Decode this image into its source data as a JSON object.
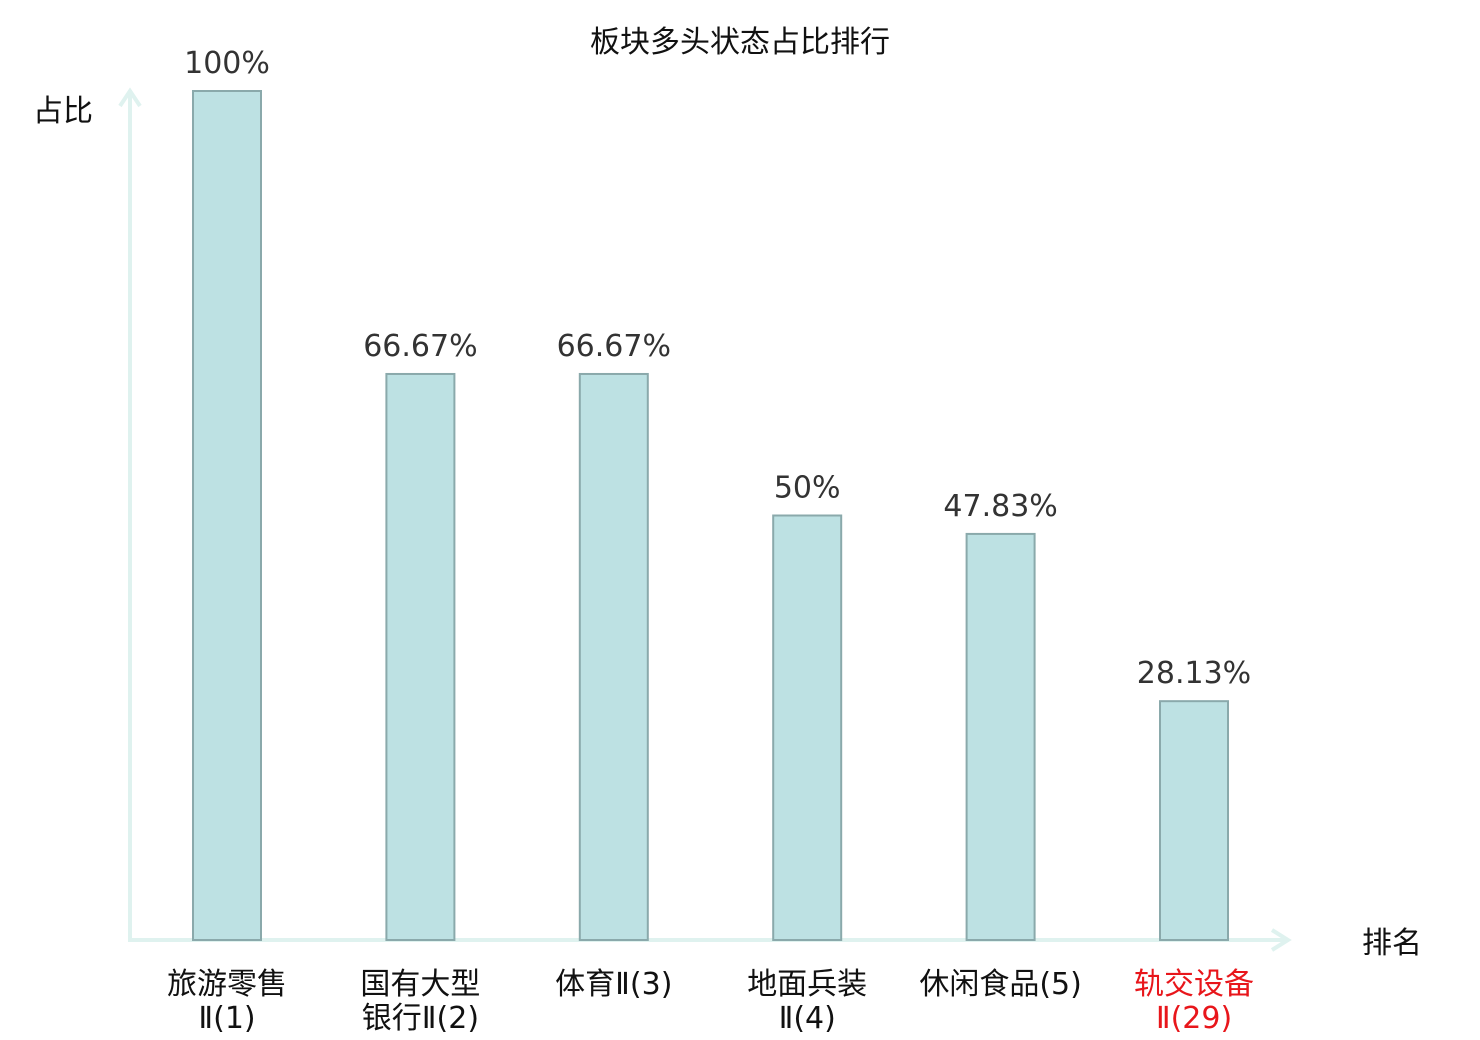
{
  "chart_data": {
    "type": "bar",
    "title": "板块多头状态占比排行",
    "ylabel": "占比",
    "xlabel": "排名",
    "ylim": [
      0,
      100
    ],
    "grid": false,
    "categories": [
      [
        "旅游零售",
        "Ⅱ(1)"
      ],
      [
        "国有大型",
        "银行Ⅱ(2)"
      ],
      [
        "体育Ⅱ(3)"
      ],
      [
        "地面兵装",
        "Ⅱ(4)"
      ],
      [
        "休闲食品(5)"
      ],
      [
        "轨交设备",
        "Ⅱ(29)"
      ]
    ],
    "values": [
      100,
      66.67,
      66.67,
      50,
      47.83,
      28.13
    ],
    "value_labels": [
      "100%",
      "66.67%",
      "66.67%",
      "50%",
      "47.83%",
      "28.13%"
    ],
    "highlight_index": 5
  },
  "colors": {
    "bar_fill": "#bde1e3",
    "bar_stroke": "#8aa9ab",
    "axis": "#dff2ef",
    "highlight": "#e8161b"
  }
}
